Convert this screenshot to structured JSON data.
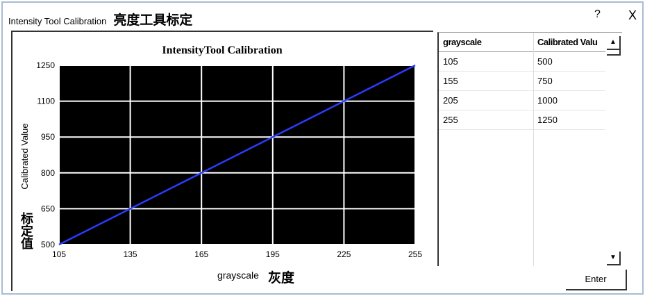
{
  "window": {
    "title": "Intensity Tool Calibration",
    "title_cn": "亮度工具标定",
    "help": "?",
    "close": "X"
  },
  "chart_data": {
    "type": "line",
    "title": "IntensityTool Calibration",
    "xlabel": "grayscale",
    "xlabel_cn": "灰度",
    "ylabel": "Calibrated Value",
    "ylabel_cn": "标定值",
    "xlim": [
      105,
      255
    ],
    "ylim": [
      500,
      1250
    ],
    "xticks": [
      105,
      135,
      165,
      195,
      225,
      255
    ],
    "yticks": [
      500,
      650,
      800,
      950,
      1100,
      1250
    ],
    "grid": true,
    "series": [
      {
        "x": [
          105,
          155,
          205,
          255
        ],
        "y": [
          500,
          750,
          1000,
          1250
        ],
        "color": "#2a3cff"
      }
    ],
    "background": "#000000"
  },
  "table": {
    "headers": [
      "grayscale",
      "Calibrated Valu"
    ],
    "rows": [
      [
        "105",
        "500"
      ],
      [
        "155",
        "750"
      ],
      [
        "205",
        "1000"
      ],
      [
        "255",
        "1250"
      ]
    ]
  },
  "enter_label": "Enter"
}
